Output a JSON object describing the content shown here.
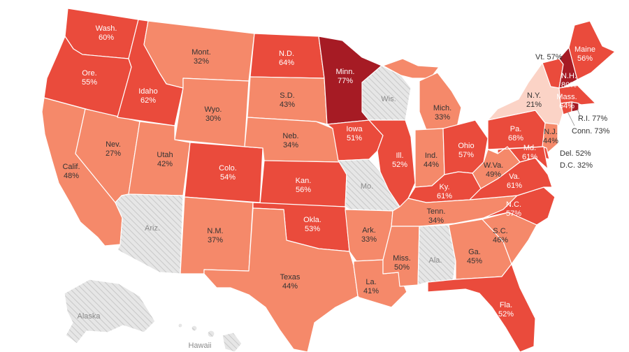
{
  "colors": {
    "c20": "#fbd3c6",
    "c30": "#f5896a",
    "c50": "#ea4b3c",
    "c70": "#a61b24",
    "nodata_bg": "#e6e6e6",
    "nodata_line": "#c8c8c8",
    "label_light": "#ffffff",
    "label_dark": "#333333"
  },
  "states": {
    "wa": {
      "name": "Wash.",
      "value": "60%"
    },
    "or": {
      "name": "Ore.",
      "value": "55%"
    },
    "ca": {
      "name": "Calif.",
      "value": "48%"
    },
    "nv": {
      "name": "Nev.",
      "value": "27%"
    },
    "id": {
      "name": "Idaho",
      "value": "62%"
    },
    "mt": {
      "name": "Mont.",
      "value": "32%"
    },
    "wy": {
      "name": "Wyo.",
      "value": "30%"
    },
    "ut": {
      "name": "Utah",
      "value": "42%"
    },
    "az": {
      "name": "Ariz.",
      "value": ""
    },
    "co": {
      "name": "Colo.",
      "value": "54%"
    },
    "nm": {
      "name": "N.M.",
      "value": "37%"
    },
    "nd": {
      "name": "N.D.",
      "value": "64%"
    },
    "sd": {
      "name": "S.D.",
      "value": "43%"
    },
    "ne": {
      "name": "Neb.",
      "value": "34%"
    },
    "ks": {
      "name": "Kan.",
      "value": "56%"
    },
    "ok": {
      "name": "Okla.",
      "value": "53%"
    },
    "tx": {
      "name": "Texas",
      "value": "44%"
    },
    "mn": {
      "name": "Minn.",
      "value": "77%"
    },
    "ia": {
      "name": "Iowa",
      "value": "51%"
    },
    "mo": {
      "name": "Mo.",
      "value": ""
    },
    "ar": {
      "name": "Ark.",
      "value": "33%"
    },
    "la": {
      "name": "La.",
      "value": "41%"
    },
    "wi": {
      "name": "Wis.",
      "value": ""
    },
    "il": {
      "name": "Ill.",
      "value": "52%"
    },
    "mi": {
      "name": "Mich.",
      "value": "33%"
    },
    "in": {
      "name": "Ind.",
      "value": "44%"
    },
    "oh": {
      "name": "Ohio",
      "value": "57%"
    },
    "ky": {
      "name": "Ky.",
      "value": "61%"
    },
    "tn": {
      "name": "Tenn.",
      "value": "34%"
    },
    "ms": {
      "name": "Miss.",
      "value": "50%"
    },
    "al": {
      "name": "Ala.",
      "value": ""
    },
    "ga": {
      "name": "Ga.",
      "value": "45%"
    },
    "fl": {
      "name": "Fla.",
      "value": "52%"
    },
    "sc": {
      "name": "S.C.",
      "value": "46%"
    },
    "nc": {
      "name": "N.C.",
      "value": "57%"
    },
    "va": {
      "name": "Va.",
      "value": "61%"
    },
    "wv": {
      "name": "W.Va.",
      "value": "49%"
    },
    "pa": {
      "name": "Pa.",
      "value": "68%"
    },
    "ny": {
      "name": "N.Y.",
      "value": "21%"
    },
    "nj": {
      "name": "N.J.",
      "value": "44%"
    },
    "md": {
      "name": "Md.",
      "value": "61%"
    },
    "me": {
      "name": "Maine",
      "value": "56%"
    },
    "nh": {
      "name": "N.H.",
      "value": "80%"
    },
    "ma": {
      "name": "Mass.",
      "value": "64%"
    },
    "ak": {
      "name": "Alaska",
      "value": ""
    },
    "hi": {
      "name": "Hawaii",
      "value": ""
    }
  },
  "callouts": {
    "vt": "Vt. 57%",
    "ri": "R.I. 77%",
    "ct": "Conn. 73%",
    "de": "Del. 52%",
    "dc": "D.C. 32%"
  }
}
